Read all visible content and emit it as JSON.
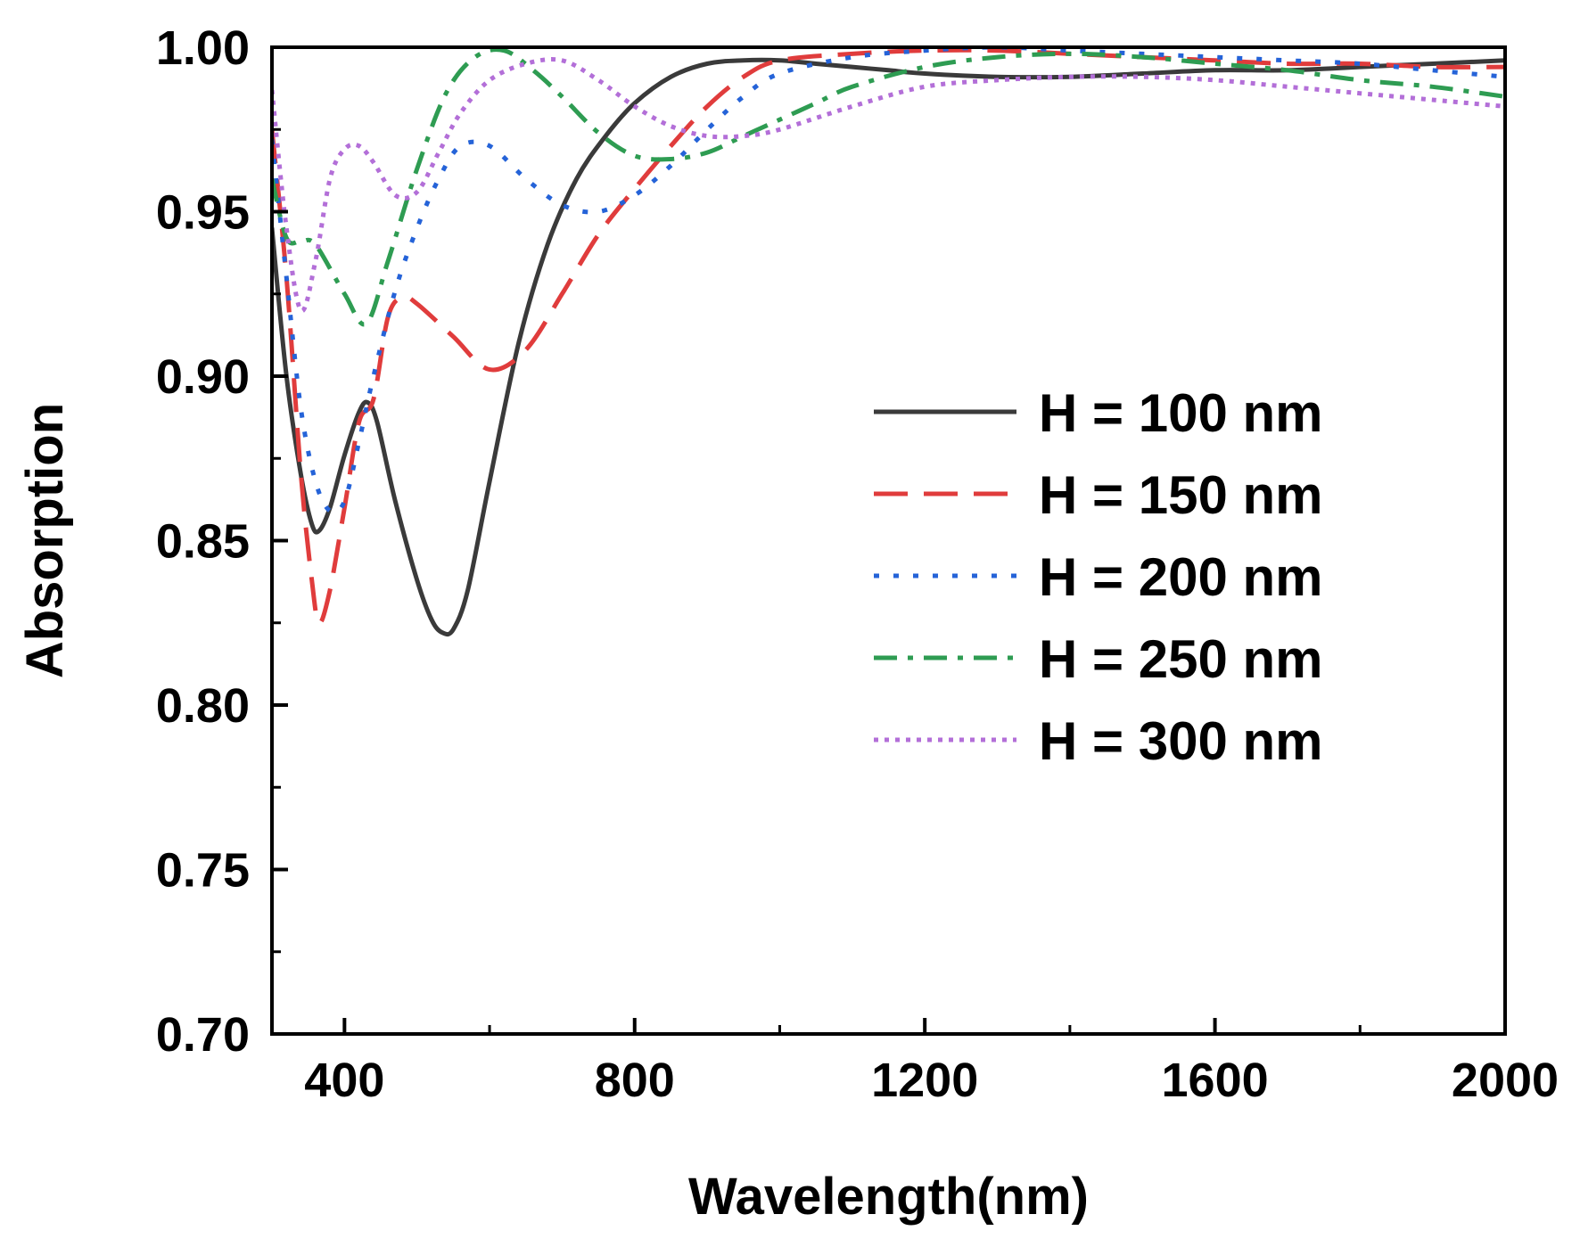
{
  "chart_data": {
    "type": "line",
    "title": "",
    "xlabel": "Wavelength(nm)",
    "ylabel": "Absorption",
    "xlim": [
      300,
      2000
    ],
    "ylim": [
      0.7,
      1.0
    ],
    "x_ticks": [
      400,
      800,
      1200,
      1600,
      2000
    ],
    "x_tick_labels": [
      "400",
      "800",
      "1200",
      "1600",
      "2000"
    ],
    "x_minor_ticks": [
      600,
      1000,
      1400,
      1800
    ],
    "y_ticks": [
      0.7,
      0.75,
      0.8,
      0.85,
      0.9,
      0.95,
      1.0
    ],
    "y_tick_labels": [
      "0.70",
      "0.75",
      "0.80",
      "0.85",
      "0.90",
      "0.95",
      "1.00"
    ],
    "y_minor_ticks": [
      0.725,
      0.775,
      0.825,
      0.875,
      0.925,
      0.975
    ],
    "grid": false,
    "legend_position": "right",
    "series": [
      {
        "name": "H = 100 nm",
        "color": "#3a3a3a",
        "dash": "solid",
        "points": [
          [
            300,
            0.945
          ],
          [
            320,
            0.9
          ],
          [
            340,
            0.87
          ],
          [
            355,
            0.855
          ],
          [
            365,
            0.853
          ],
          [
            380,
            0.86
          ],
          [
            400,
            0.876
          ],
          [
            420,
            0.889
          ],
          [
            432,
            0.892
          ],
          [
            445,
            0.886
          ],
          [
            470,
            0.862
          ],
          [
            500,
            0.838
          ],
          [
            520,
            0.826
          ],
          [
            535,
            0.822
          ],
          [
            550,
            0.823
          ],
          [
            570,
            0.835
          ],
          [
            600,
            0.868
          ],
          [
            640,
            0.91
          ],
          [
            680,
            0.94
          ],
          [
            720,
            0.96
          ],
          [
            760,
            0.973
          ],
          [
            800,
            0.983
          ],
          [
            850,
            0.991
          ],
          [
            900,
            0.995
          ],
          [
            950,
            0.996
          ],
          [
            1000,
            0.996
          ],
          [
            1050,
            0.995
          ],
          [
            1100,
            0.994
          ],
          [
            1150,
            0.993
          ],
          [
            1200,
            0.992
          ],
          [
            1300,
            0.991
          ],
          [
            1400,
            0.991
          ],
          [
            1500,
            0.992
          ],
          [
            1600,
            0.993
          ],
          [
            1700,
            0.993
          ],
          [
            1800,
            0.994
          ],
          [
            1900,
            0.995
          ],
          [
            2000,
            0.996
          ]
        ]
      },
      {
        "name": "H = 150 nm",
        "color": "#e03c3c",
        "dash": "long-dash",
        "points": [
          [
            300,
            0.975
          ],
          [
            320,
            0.93
          ],
          [
            340,
            0.87
          ],
          [
            355,
            0.838
          ],
          [
            365,
            0.825
          ],
          [
            380,
            0.835
          ],
          [
            400,
            0.86
          ],
          [
            420,
            0.886
          ],
          [
            440,
            0.893
          ],
          [
            460,
            0.918
          ],
          [
            480,
            0.924
          ],
          [
            500,
            0.922
          ],
          [
            550,
            0.912
          ],
          [
            600,
            0.902
          ],
          [
            650,
            0.908
          ],
          [
            700,
            0.925
          ],
          [
            750,
            0.943
          ],
          [
            800,
            0.957
          ],
          [
            850,
            0.97
          ],
          [
            900,
            0.982
          ],
          [
            950,
            0.991
          ],
          [
            1000,
            0.996
          ],
          [
            1100,
            0.998
          ],
          [
            1200,
            0.999
          ],
          [
            1300,
            0.999
          ],
          [
            1400,
            0.998
          ],
          [
            1500,
            0.997
          ],
          [
            1600,
            0.996
          ],
          [
            1700,
            0.995
          ],
          [
            1800,
            0.995
          ],
          [
            1900,
            0.994
          ],
          [
            2000,
            0.994
          ]
        ]
      },
      {
        "name": "H = 200 nm",
        "color": "#2563d8",
        "dash": "dotted",
        "points": [
          [
            300,
            0.972
          ],
          [
            320,
            0.93
          ],
          [
            340,
            0.89
          ],
          [
            360,
            0.868
          ],
          [
            380,
            0.859
          ],
          [
            400,
            0.862
          ],
          [
            420,
            0.88
          ],
          [
            440,
            0.9
          ],
          [
            470,
            0.926
          ],
          [
            500,
            0.945
          ],
          [
            530,
            0.96
          ],
          [
            560,
            0.97
          ],
          [
            600,
            0.97
          ],
          [
            650,
            0.96
          ],
          [
            700,
            0.952
          ],
          [
            750,
            0.95
          ],
          [
            800,
            0.955
          ],
          [
            850,
            0.964
          ],
          [
            900,
            0.975
          ],
          [
            950,
            0.985
          ],
          [
            1000,
            0.992
          ],
          [
            1100,
            0.997
          ],
          [
            1200,
            0.999
          ],
          [
            1300,
            1.0
          ],
          [
            1400,
            0.999
          ],
          [
            1500,
            0.998
          ],
          [
            1600,
            0.997
          ],
          [
            1700,
            0.996
          ],
          [
            1800,
            0.995
          ],
          [
            1900,
            0.993
          ],
          [
            2000,
            0.991
          ]
        ]
      },
      {
        "name": "H = 250 nm",
        "color": "#2e9c52",
        "dash": "dash-dot",
        "points": [
          [
            300,
            0.96
          ],
          [
            320,
            0.942
          ],
          [
            340,
            0.941
          ],
          [
            360,
            0.94
          ],
          [
            400,
            0.925
          ],
          [
            430,
            0.916
          ],
          [
            460,
            0.935
          ],
          [
            500,
            0.963
          ],
          [
            540,
            0.986
          ],
          [
            580,
            0.997
          ],
          [
            620,
            0.999
          ],
          [
            660,
            0.993
          ],
          [
            700,
            0.985
          ],
          [
            750,
            0.974
          ],
          [
            800,
            0.967
          ],
          [
            850,
            0.966
          ],
          [
            900,
            0.968
          ],
          [
            950,
            0.973
          ],
          [
            1000,
            0.978
          ],
          [
            1050,
            0.983
          ],
          [
            1100,
            0.988
          ],
          [
            1200,
            0.994
          ],
          [
            1300,
            0.997
          ],
          [
            1400,
            0.998
          ],
          [
            1500,
            0.997
          ],
          [
            1600,
            0.995
          ],
          [
            1700,
            0.993
          ],
          [
            1800,
            0.99
          ],
          [
            1900,
            0.988
          ],
          [
            2000,
            0.985
          ]
        ]
      },
      {
        "name": "H = 300 nm",
        "color": "#b36fd8",
        "dash": "fine-dotted",
        "points": [
          [
            300,
            0.987
          ],
          [
            320,
            0.945
          ],
          [
            340,
            0.92
          ],
          [
            360,
            0.935
          ],
          [
            380,
            0.96
          ],
          [
            400,
            0.969
          ],
          [
            420,
            0.97
          ],
          [
            440,
            0.965
          ],
          [
            470,
            0.955
          ],
          [
            500,
            0.956
          ],
          [
            530,
            0.968
          ],
          [
            560,
            0.98
          ],
          [
            600,
            0.99
          ],
          [
            650,
            0.995
          ],
          [
            700,
            0.996
          ],
          [
            750,
            0.99
          ],
          [
            800,
            0.982
          ],
          [
            850,
            0.976
          ],
          [
            900,
            0.973
          ],
          [
            950,
            0.973
          ],
          [
            1000,
            0.975
          ],
          [
            1100,
            0.982
          ],
          [
            1200,
            0.988
          ],
          [
            1300,
            0.99
          ],
          [
            1400,
            0.991
          ],
          [
            1500,
            0.991
          ],
          [
            1600,
            0.99
          ],
          [
            1700,
            0.988
          ],
          [
            1800,
            0.986
          ],
          [
            1900,
            0.984
          ],
          [
            2000,
            0.982
          ]
        ]
      }
    ]
  }
}
